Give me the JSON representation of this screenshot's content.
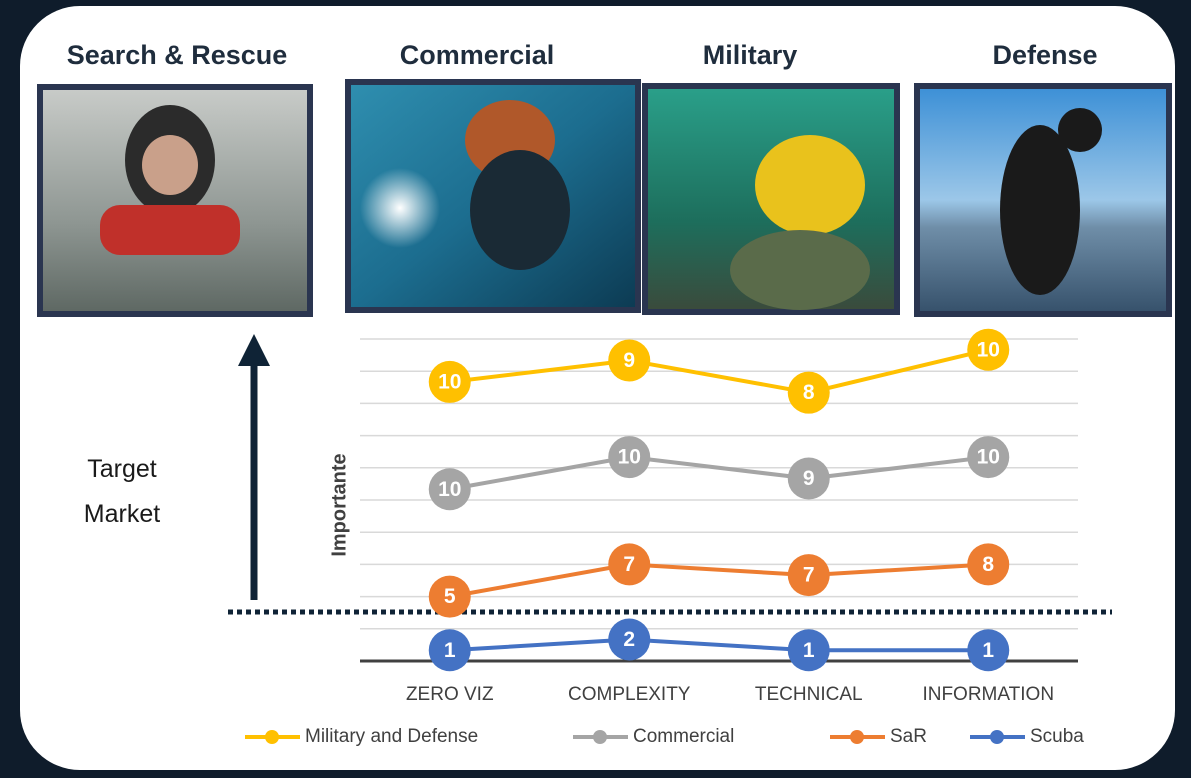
{
  "headers": [
    "Search & Rescue",
    "Commercial",
    "Military",
    "Defense"
  ],
  "target_label": "Target\nMarket",
  "chart_data": {
    "type": "line",
    "stacked": true,
    "y_label": "Importante",
    "categories": [
      "ZERO VIZ",
      "COMPLEXITY",
      "TECHNICAL",
      "INFORMATION"
    ],
    "series": [
      {
        "name": "Military and Defense",
        "color": "#ffc000",
        "values": [
          10,
          9,
          8,
          10
        ]
      },
      {
        "name": "Commercial",
        "color": "#a5a5a5",
        "values": [
          10,
          10,
          9,
          10
        ]
      },
      {
        "name": "SaR",
        "color": "#ed7d31",
        "values": [
          5,
          7,
          7,
          8
        ]
      },
      {
        "name": "Scuba",
        "color": "#4472c4",
        "values": [
          1,
          2,
          1,
          1
        ]
      }
    ],
    "ylim": [
      0,
      30
    ],
    "yticks": [
      0,
      3,
      6,
      9,
      12,
      15,
      18,
      21,
      24,
      27,
      30
    ],
    "grid": true
  }
}
